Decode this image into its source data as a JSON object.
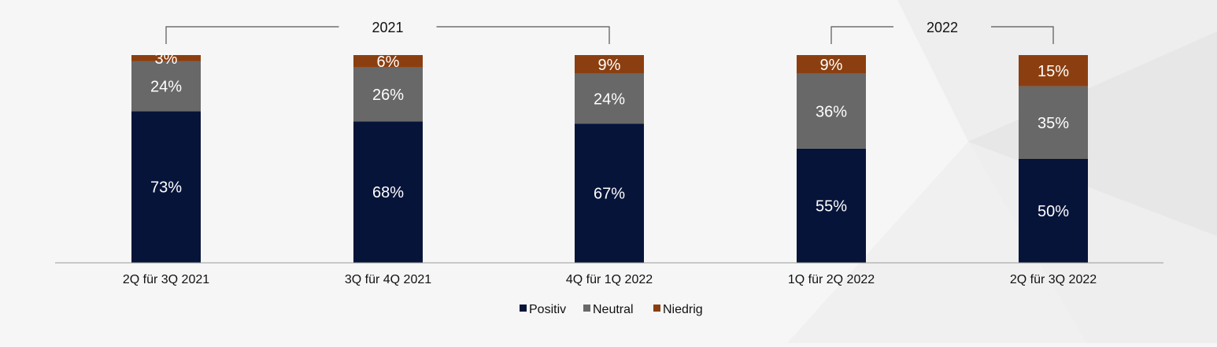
{
  "chart_data": {
    "type": "bar",
    "stacked": true,
    "categories": [
      "2Q für 3Q 2021",
      "3Q für 4Q 2021",
      "4Q für 1Q 2022",
      "1Q für 2Q 2022",
      "2Q für 3Q 2022"
    ],
    "series": [
      {
        "name": "Positiv",
        "color": "#07143a",
        "values": [
          73,
          68,
          67,
          55,
          50
        ],
        "labels": [
          "73%",
          "68%",
          "67%",
          "55%",
          "50%"
        ]
      },
      {
        "name": "Neutral",
        "color": "#686868",
        "values": [
          24,
          26,
          24,
          36,
          35
        ],
        "labels": [
          "24%",
          "26%",
          "24%",
          "36%",
          "35%"
        ]
      },
      {
        "name": "Niedrig",
        "color": "#8b3f10",
        "values": [
          3,
          6,
          9,
          9,
          15
        ],
        "labels": [
          "3%",
          "6%",
          "9%",
          "9%",
          "15%"
        ]
      }
    ],
    "ylim": [
      0,
      100
    ],
    "grid": false,
    "legend_position": "bottom",
    "groups": [
      {
        "label": "2021",
        "from_category": 0,
        "to_category": 2
      },
      {
        "label": "2022",
        "from_category": 3,
        "to_category": 4
      }
    ]
  },
  "colors": {
    "background": "#f6f6f6",
    "axis": "#9a9a9a",
    "bracket": "#555555",
    "bar_label": "#ffffff",
    "text": "#111111"
  }
}
